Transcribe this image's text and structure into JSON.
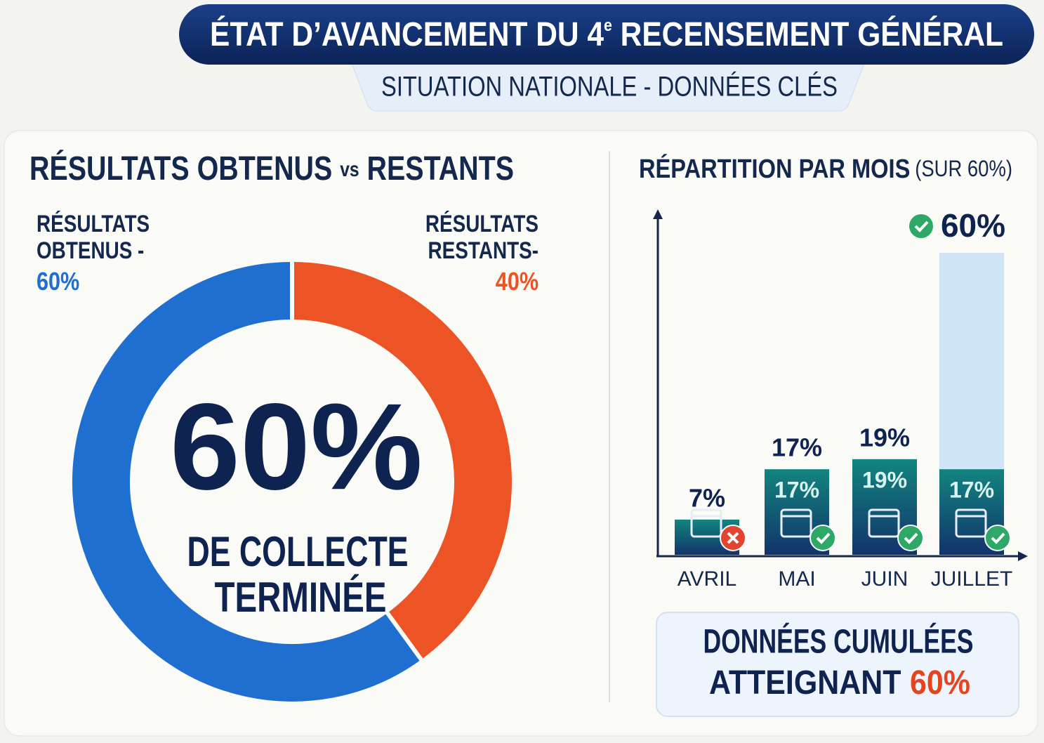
{
  "header": {
    "title_parts": [
      "ÉTAT D’AVANCEMENT DU 4",
      "e",
      " RECENSEMENT GÉNÉRAL"
    ],
    "subtitle": "SITUATION NATIONALE - DONNÉES CLÉS"
  },
  "chart_data": [
    {
      "type": "donut",
      "title_parts": [
        "RÉSULTATS OBTENUS ",
        "vs",
        " RESTANTS"
      ],
      "categories": [
        "RÉSULTATS OBTENUS -",
        "RÉSULTATS RESTANTS-"
      ],
      "values": [
        60,
        40
      ],
      "value_labels": [
        "60%",
        "40%"
      ],
      "colors": [
        "#1f6fd0",
        "#ec5325"
      ],
      "center_label": "60%",
      "caption": [
        "DE COLLECTE",
        "TERMINÉE"
      ]
    },
    {
      "type": "bar",
      "title": "RÉPARTITION PAR MOIS",
      "subtitle": "(SUR 60%)",
      "categories": [
        "AVRIL",
        "MAI",
        "JUIN",
        "JUILLET"
      ],
      "values": [
        7,
        17,
        19,
        17
      ],
      "value_labels": [
        "7%",
        "17%",
        "19%",
        "17%"
      ],
      "color": "#11606f",
      "cumulative": {
        "values": [
          null,
          null,
          null,
          60
        ],
        "value_labels": [
          null,
          null,
          null,
          "60%"
        ],
        "color": "#cfe4f6"
      },
      "complete": [
        false,
        true,
        true,
        true
      ],
      "ylim": [
        0,
        60
      ]
    }
  ],
  "summary": {
    "lines": [
      "DONNÉES CUMULÉES",
      "ATTEIGNANT"
    ],
    "highlight": "60%"
  }
}
